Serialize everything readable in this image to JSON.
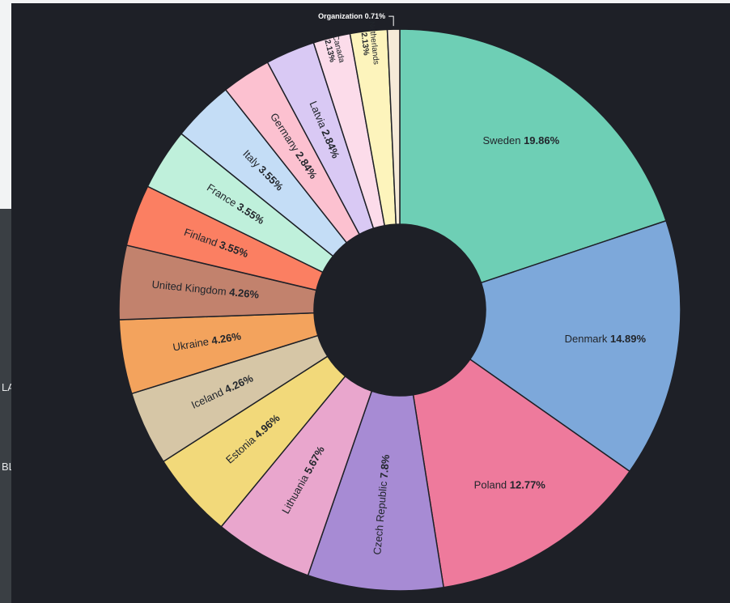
{
  "backdrop": {
    "map_fragments": [
      "LA",
      "BL"
    ]
  },
  "chart_data": {
    "type": "pie",
    "donut": true,
    "title": "",
    "background": "#1e2027",
    "slices": [
      {
        "label": "Sweden",
        "value": 19.86,
        "display": "19.86%",
        "color": "#6ecfb5"
      },
      {
        "label": "Denmark",
        "value": 14.89,
        "display": "14.89%",
        "color": "#7da8da"
      },
      {
        "label": "Poland",
        "value": 12.77,
        "display": "12.77%",
        "color": "#ee7a9c"
      },
      {
        "label": "Czech Republic",
        "value": 7.8,
        "display": "7.8%",
        "color": "#a78bd4"
      },
      {
        "label": "Lithuania",
        "value": 5.67,
        "display": "5.67%",
        "color": "#e9a6cd"
      },
      {
        "label": "Estonia",
        "value": 4.96,
        "display": "4.96%",
        "color": "#f2d97a"
      },
      {
        "label": "Iceland",
        "value": 4.26,
        "display": "4.26%",
        "color": "#d6c6a6"
      },
      {
        "label": "Ukraine",
        "value": 4.26,
        "display": "4.26%",
        "color": "#f3a35d"
      },
      {
        "label": "United Kingdom",
        "value": 4.26,
        "display": "4.26%",
        "color": "#c2826d"
      },
      {
        "label": "Finland",
        "value": 3.55,
        "display": "3.55%",
        "color": "#fb7f62"
      },
      {
        "label": "France",
        "value": 3.55,
        "display": "3.55%",
        "color": "#bff0db"
      },
      {
        "label": "Italy",
        "value": 3.55,
        "display": "3.55%",
        "color": "#c4ddf6"
      },
      {
        "label": "Germany",
        "value": 2.84,
        "display": "2.84%",
        "color": "#fcc1d0"
      },
      {
        "label": "Latvia",
        "value": 2.84,
        "display": "2.84%",
        "color": "#d9c9f4"
      },
      {
        "label": "Canada",
        "value": 2.13,
        "display": "2.13%",
        "color": "#fcdcea"
      },
      {
        "label": "Netherlands",
        "value": 2.13,
        "display": "2.13%",
        "color": "#fdf4bc"
      },
      {
        "label": "Organization",
        "value": 0.71,
        "display": "0.71%",
        "color": "#f6ead8"
      }
    ]
  }
}
